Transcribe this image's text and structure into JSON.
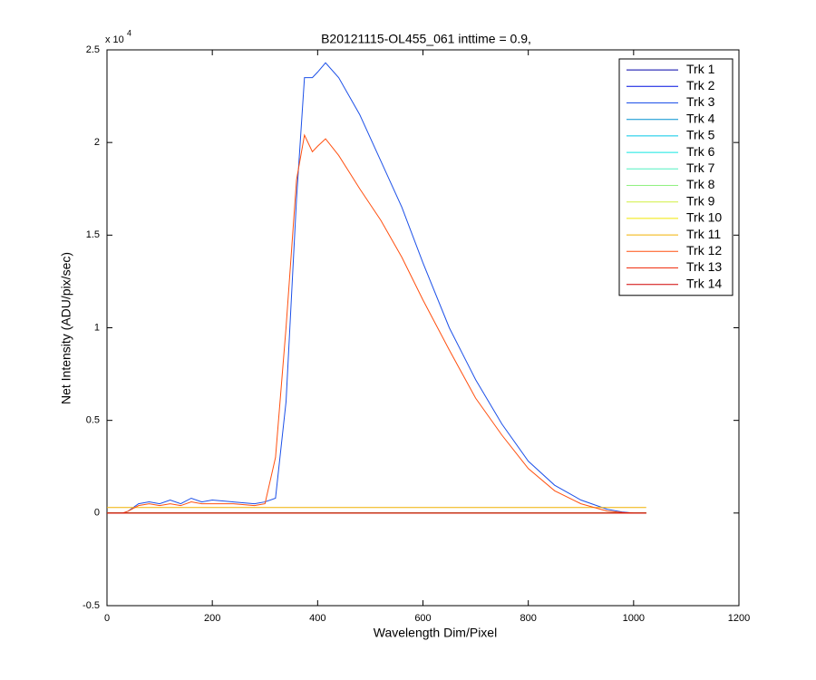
{
  "chart_data": {
    "type": "line",
    "title": "B20121115-OL455_061 inttime = 0.9,",
    "x_label": "Wavelength Dim/Pixel",
    "y_label": "Net Intensity (ADU/pix/sec)",
    "y_multiplier": "x 10",
    "y_exponent": "4",
    "xlim": [
      0,
      1200
    ],
    "xticks": [
      0,
      200,
      400,
      600,
      800,
      1000,
      1200
    ],
    "ylim": [
      -0.5,
      2.5
    ],
    "yticks": [
      -0.5,
      0,
      0.5,
      1,
      1.5,
      2,
      2.5
    ],
    "grid": false,
    "legend": "top-right",
    "x": [
      0,
      30,
      40,
      60,
      80,
      100,
      120,
      140,
      160,
      180,
      200,
      240,
      280,
      300,
      320,
      340,
      360,
      375,
      390,
      400,
      415,
      440,
      480,
      520,
      560,
      600,
      650,
      700,
      750,
      800,
      850,
      900,
      950,
      980,
      1000,
      1024
    ],
    "series": [
      {
        "name": "Trk 1",
        "color": "#0000a8",
        "values": [
          0,
          0,
          0,
          0,
          0,
          0,
          0,
          0,
          0,
          0,
          0,
          0,
          0,
          0,
          0,
          0,
          0,
          0,
          0,
          0,
          0,
          0,
          0,
          0,
          0,
          0,
          0,
          0,
          0,
          0,
          0,
          0,
          0,
          0,
          0,
          0
        ]
      },
      {
        "name": "Trk 2",
        "color": "#0010e0",
        "values": [
          0,
          0,
          0,
          0,
          0,
          0,
          0,
          0,
          0,
          0,
          0,
          0,
          0,
          0,
          0,
          0,
          0,
          0,
          0,
          0,
          0,
          0,
          0,
          0,
          0,
          0,
          0,
          0,
          0,
          0,
          0,
          0,
          0,
          0,
          0,
          0
        ]
      },
      {
        "name": "Trk 3",
        "color": "#1c50e8",
        "values": [
          0,
          0,
          0.01,
          0.05,
          0.06,
          0.05,
          0.07,
          0.05,
          0.08,
          0.06,
          0.07,
          0.06,
          0.05,
          0.06,
          0.08,
          0.6,
          1.7,
          2.35,
          2.35,
          2.38,
          2.43,
          2.35,
          2.15,
          1.9,
          1.65,
          1.35,
          1,
          0.72,
          0.48,
          0.28,
          0.15,
          0.07,
          0.02,
          0.005,
          0,
          0
        ]
      },
      {
        "name": "Trk 4",
        "color": "#0090d0",
        "values": [
          0,
          0,
          0,
          0,
          0,
          0,
          0,
          0,
          0,
          0,
          0,
          0,
          0,
          0,
          0,
          0,
          0,
          0,
          0,
          0,
          0,
          0,
          0,
          0,
          0,
          0,
          0,
          0,
          0,
          0,
          0,
          0,
          0,
          0,
          0,
          0
        ]
      },
      {
        "name": "Trk 5",
        "color": "#00c8e8",
        "values": [
          0,
          0,
          0,
          0,
          0,
          0,
          0,
          0,
          0,
          0,
          0,
          0,
          0,
          0,
          0,
          0,
          0,
          0,
          0,
          0,
          0,
          0,
          0,
          0,
          0,
          0,
          0,
          0,
          0,
          0,
          0,
          0,
          0,
          0,
          0,
          0
        ]
      },
      {
        "name": "Trk 6",
        "color": "#10e8e0",
        "values": [
          0,
          0,
          0,
          0,
          0,
          0,
          0,
          0,
          0,
          0,
          0,
          0,
          0,
          0,
          0,
          0,
          0,
          0,
          0,
          0,
          0,
          0,
          0,
          0,
          0,
          0,
          0,
          0,
          0,
          0,
          0,
          0,
          0,
          0,
          0,
          0
        ]
      },
      {
        "name": "Trk 7",
        "color": "#50f0c0",
        "values": [
          0,
          0,
          0,
          0,
          0,
          0,
          0,
          0,
          0,
          0,
          0,
          0,
          0,
          0,
          0,
          0,
          0,
          0,
          0,
          0,
          0,
          0,
          0,
          0,
          0,
          0,
          0,
          0,
          0,
          0,
          0,
          0,
          0,
          0,
          0,
          0
        ]
      },
      {
        "name": "Trk 8",
        "color": "#90f080",
        "values": [
          0,
          0,
          0,
          0,
          0,
          0,
          0,
          0,
          0,
          0,
          0,
          0,
          0,
          0,
          0,
          0,
          0,
          0,
          0,
          0,
          0,
          0,
          0,
          0,
          0,
          0,
          0,
          0,
          0,
          0,
          0,
          0,
          0,
          0,
          0,
          0
        ]
      },
      {
        "name": "Trk 9",
        "color": "#d0f040",
        "values": [
          0,
          0,
          0,
          0,
          0,
          0,
          0,
          0,
          0,
          0,
          0,
          0,
          0,
          0,
          0,
          0,
          0,
          0,
          0,
          0,
          0,
          0,
          0,
          0,
          0,
          0,
          0,
          0,
          0,
          0,
          0,
          0,
          0,
          0,
          0,
          0
        ]
      },
      {
        "name": "Trk 10",
        "color": "#f0e800",
        "values": [
          0,
          0,
          0,
          0,
          0,
          0,
          0,
          0,
          0,
          0,
          0,
          0,
          0,
          0,
          0,
          0,
          0,
          0,
          0,
          0,
          0,
          0,
          0,
          0,
          0,
          0,
          0,
          0,
          0,
          0,
          0,
          0,
          0,
          0,
          0,
          0
        ]
      },
      {
        "name": "Trk 11",
        "color": "#f0b000",
        "values": [
          0.03,
          0.03,
          0.03,
          0.03,
          0.03,
          0.03,
          0.03,
          0.03,
          0.03,
          0.03,
          0.03,
          0.03,
          0.03,
          0.03,
          0.03,
          0.03,
          0.03,
          0.03,
          0.03,
          0.03,
          0.03,
          0.03,
          0.03,
          0.03,
          0.03,
          0.03,
          0.03,
          0.03,
          0.03,
          0.03,
          0.03,
          0.03,
          0.03,
          0.03,
          0.03,
          0.03
        ]
      },
      {
        "name": "Trk 12",
        "color": "#ff5010",
        "values": [
          0,
          0,
          0.01,
          0.04,
          0.05,
          0.04,
          0.05,
          0.04,
          0.06,
          0.05,
          0.05,
          0.05,
          0.04,
          0.05,
          0.3,
          1,
          1.8,
          2.04,
          1.95,
          1.98,
          2.02,
          1.93,
          1.75,
          1.58,
          1.38,
          1.15,
          0.88,
          0.62,
          0.42,
          0.24,
          0.12,
          0.05,
          0.01,
          0.003,
          0,
          0
        ]
      },
      {
        "name": "Trk 13",
        "color": "#f03010",
        "values": [
          0,
          0,
          0,
          0,
          0,
          0,
          0,
          0,
          0,
          0,
          0,
          0,
          0,
          0,
          0,
          0,
          0,
          0,
          0,
          0,
          0,
          0,
          0,
          0,
          0,
          0,
          0,
          0,
          0,
          0,
          0,
          0,
          0,
          0,
          0,
          0
        ]
      },
      {
        "name": "Trk 14",
        "color": "#d00000",
        "values": [
          0,
          0,
          0,
          0,
          0,
          0,
          0,
          0,
          0,
          0,
          0,
          0,
          0,
          0,
          0,
          0,
          0,
          0,
          0,
          0,
          0,
          0,
          0,
          0,
          0,
          0,
          0,
          0,
          0,
          0,
          0,
          0,
          0,
          0,
          0,
          0
        ]
      }
    ]
  }
}
